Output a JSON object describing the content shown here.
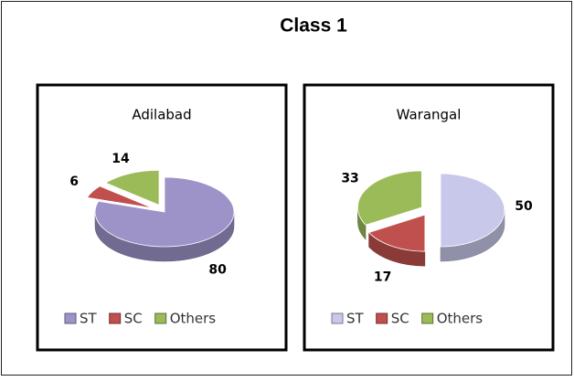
{
  "title": "Class 1",
  "chart_data": [
    {
      "type": "pie",
      "title": "Adilabad",
      "categories": [
        "ST",
        "SC",
        "Others"
      ],
      "values": [
        80,
        6,
        14
      ],
      "colors": [
        "#9d93c9",
        "#c0504d",
        "#9bbb59"
      ],
      "legend": "bottom"
    },
    {
      "type": "pie",
      "title": "Warangal",
      "categories": [
        "ST",
        "SC",
        "Others"
      ],
      "values": [
        50,
        17,
        33
      ],
      "colors": [
        "#c8c8ea",
        "#c0504d",
        "#9bbb59"
      ],
      "legend": "bottom"
    }
  ]
}
